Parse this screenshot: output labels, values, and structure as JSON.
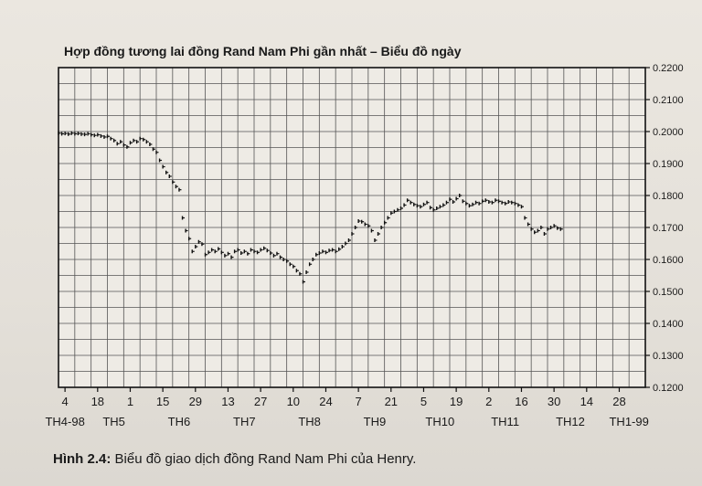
{
  "chart_data": {
    "type": "scatter",
    "title": "Hợp đồng tương lai đồng Rand Nam Phi gần nhất – Biểu đồ ngày",
    "ylim": [
      0.12,
      0.22
    ],
    "grid": true,
    "y_axis_position": "right",
    "y_ticks": [
      "0.2200",
      "0.2100",
      "0.2000",
      "0.1900",
      "0.1800",
      "0.1700",
      "0.1600",
      "0.1500",
      "0.1400",
      "0.1300",
      "0.1200"
    ],
    "x_day_labels": [
      "4",
      "18",
      "1",
      "15",
      "29",
      "13",
      "27",
      "10",
      "24",
      "7",
      "21",
      "5",
      "19",
      "2",
      "16",
      "30",
      "14",
      "28"
    ],
    "x_month_labels": [
      "TH4-98",
      "TH5",
      "TH6",
      "TH7",
      "TH8",
      "TH9",
      "TH10",
      "TH11",
      "TH12",
      "TH1-99"
    ],
    "x_range": [
      0,
      180
    ],
    "day_tick_positions": [
      2,
      12,
      22,
      32,
      42,
      52,
      62,
      72,
      82,
      92,
      102,
      112,
      122,
      132,
      142,
      152,
      162,
      172
    ],
    "month_label_positions": [
      2,
      17,
      37,
      57,
      77,
      97,
      117,
      137,
      157,
      175
    ],
    "points": [
      [
        0,
        0.1995
      ],
      [
        1,
        0.1993
      ],
      [
        2,
        0.1994
      ],
      [
        3,
        0.1992
      ],
      [
        4,
        0.1995
      ],
      [
        5,
        0.1993
      ],
      [
        6,
        0.1994
      ],
      [
        7,
        0.1992
      ],
      [
        8,
        0.1991
      ],
      [
        9,
        0.1993
      ],
      [
        10,
        0.199
      ],
      [
        11,
        0.1988
      ],
      [
        12,
        0.199
      ],
      [
        13,
        0.1986
      ],
      [
        14,
        0.1983
      ],
      [
        15,
        0.1985
      ],
      [
        16,
        0.1978
      ],
      [
        17,
        0.1972
      ],
      [
        18,
        0.1962
      ],
      [
        19,
        0.1968
      ],
      [
        20,
        0.1958
      ],
      [
        21,
        0.1952
      ],
      [
        22,
        0.1965
      ],
      [
        23,
        0.1972
      ],
      [
        24,
        0.1968
      ],
      [
        25,
        0.1978
      ],
      [
        26,
        0.1975
      ],
      [
        27,
        0.1968
      ],
      [
        28,
        0.196
      ],
      [
        29,
        0.1945
      ],
      [
        30,
        0.1935
      ],
      [
        31,
        0.191
      ],
      [
        32,
        0.189
      ],
      [
        33,
        0.1872
      ],
      [
        34,
        0.186
      ],
      [
        35,
        0.1842
      ],
      [
        36,
        0.1828
      ],
      [
        37,
        0.1818
      ],
      [
        38,
        0.173
      ],
      [
        39,
        0.169
      ],
      [
        40,
        0.1665
      ],
      [
        41,
        0.1625
      ],
      [
        42,
        0.164
      ],
      [
        43,
        0.1655
      ],
      [
        44,
        0.1648
      ],
      [
        45,
        0.1615
      ],
      [
        46,
        0.1622
      ],
      [
        47,
        0.163
      ],
      [
        48,
        0.1625
      ],
      [
        49,
        0.1633
      ],
      [
        50,
        0.1622
      ],
      [
        51,
        0.1612
      ],
      [
        52,
        0.1618
      ],
      [
        53,
        0.1607
      ],
      [
        54,
        0.1625
      ],
      [
        55,
        0.163
      ],
      [
        56,
        0.162
      ],
      [
        57,
        0.1625
      ],
      [
        58,
        0.1618
      ],
      [
        59,
        0.163
      ],
      [
        60,
        0.1625
      ],
      [
        61,
        0.1622
      ],
      [
        62,
        0.163
      ],
      [
        63,
        0.1635
      ],
      [
        64,
        0.1628
      ],
      [
        65,
        0.162
      ],
      [
        66,
        0.1612
      ],
      [
        67,
        0.1618
      ],
      [
        68,
        0.1607
      ],
      [
        69,
        0.16
      ],
      [
        70,
        0.1595
      ],
      [
        71,
        0.1585
      ],
      [
        72,
        0.1578
      ],
      [
        73,
        0.1565
      ],
      [
        74,
        0.1555
      ],
      [
        75,
        0.153
      ],
      [
        76,
        0.156
      ],
      [
        77,
        0.1585
      ],
      [
        78,
        0.16
      ],
      [
        79,
        0.1615
      ],
      [
        80,
        0.162
      ],
      [
        81,
        0.1625
      ],
      [
        82,
        0.1622
      ],
      [
        83,
        0.1628
      ],
      [
        84,
        0.163
      ],
      [
        85,
        0.1625
      ],
      [
        86,
        0.1632
      ],
      [
        87,
        0.164
      ],
      [
        88,
        0.165
      ],
      [
        89,
        0.166
      ],
      [
        90,
        0.168
      ],
      [
        91,
        0.17
      ],
      [
        92,
        0.172
      ],
      [
        93,
        0.1718
      ],
      [
        94,
        0.171
      ],
      [
        95,
        0.1705
      ],
      [
        96,
        0.169
      ],
      [
        97,
        0.166
      ],
      [
        98,
        0.168
      ],
      [
        99,
        0.17
      ],
      [
        100,
        0.1715
      ],
      [
        101,
        0.173
      ],
      [
        102,
        0.1745
      ],
      [
        103,
        0.175
      ],
      [
        104,
        0.1755
      ],
      [
        105,
        0.176
      ],
      [
        106,
        0.177
      ],
      [
        107,
        0.1785
      ],
      [
        108,
        0.1778
      ],
      [
        109,
        0.1772
      ],
      [
        110,
        0.1768
      ],
      [
        111,
        0.1765
      ],
      [
        112,
        0.1772
      ],
      [
        113,
        0.1778
      ],
      [
        114,
        0.1762
      ],
      [
        115,
        0.1755
      ],
      [
        116,
        0.176
      ],
      [
        117,
        0.1765
      ],
      [
        118,
        0.177
      ],
      [
        119,
        0.1778
      ],
      [
        120,
        0.1788
      ],
      [
        121,
        0.178
      ],
      [
        122,
        0.179
      ],
      [
        123,
        0.18
      ],
      [
        124,
        0.1782
      ],
      [
        125,
        0.1775
      ],
      [
        126,
        0.1768
      ],
      [
        127,
        0.1772
      ],
      [
        128,
        0.1778
      ],
      [
        129,
        0.1775
      ],
      [
        130,
        0.1782
      ],
      [
        131,
        0.1785
      ],
      [
        132,
        0.178
      ],
      [
        133,
        0.1778
      ],
      [
        134,
        0.1785
      ],
      [
        135,
        0.1782
      ],
      [
        136,
        0.1778
      ],
      [
        137,
        0.1775
      ],
      [
        138,
        0.178
      ],
      [
        139,
        0.1778
      ],
      [
        140,
        0.1775
      ],
      [
        141,
        0.177
      ],
      [
        142,
        0.1765
      ],
      [
        143,
        0.173
      ],
      [
        144,
        0.171
      ],
      [
        145,
        0.1695
      ],
      [
        146,
        0.1685
      ],
      [
        147,
        0.169
      ],
      [
        148,
        0.17
      ],
      [
        149,
        0.168
      ],
      [
        150,
        0.1695
      ],
      [
        151,
        0.17
      ],
      [
        152,
        0.1705
      ],
      [
        153,
        0.1698
      ],
      [
        154,
        0.1695
      ]
    ]
  },
  "caption": {
    "label": "Hình 2.4:",
    "text": " Biểu đồ giao dịch đồng Rand Nam Phi của Henry."
  }
}
